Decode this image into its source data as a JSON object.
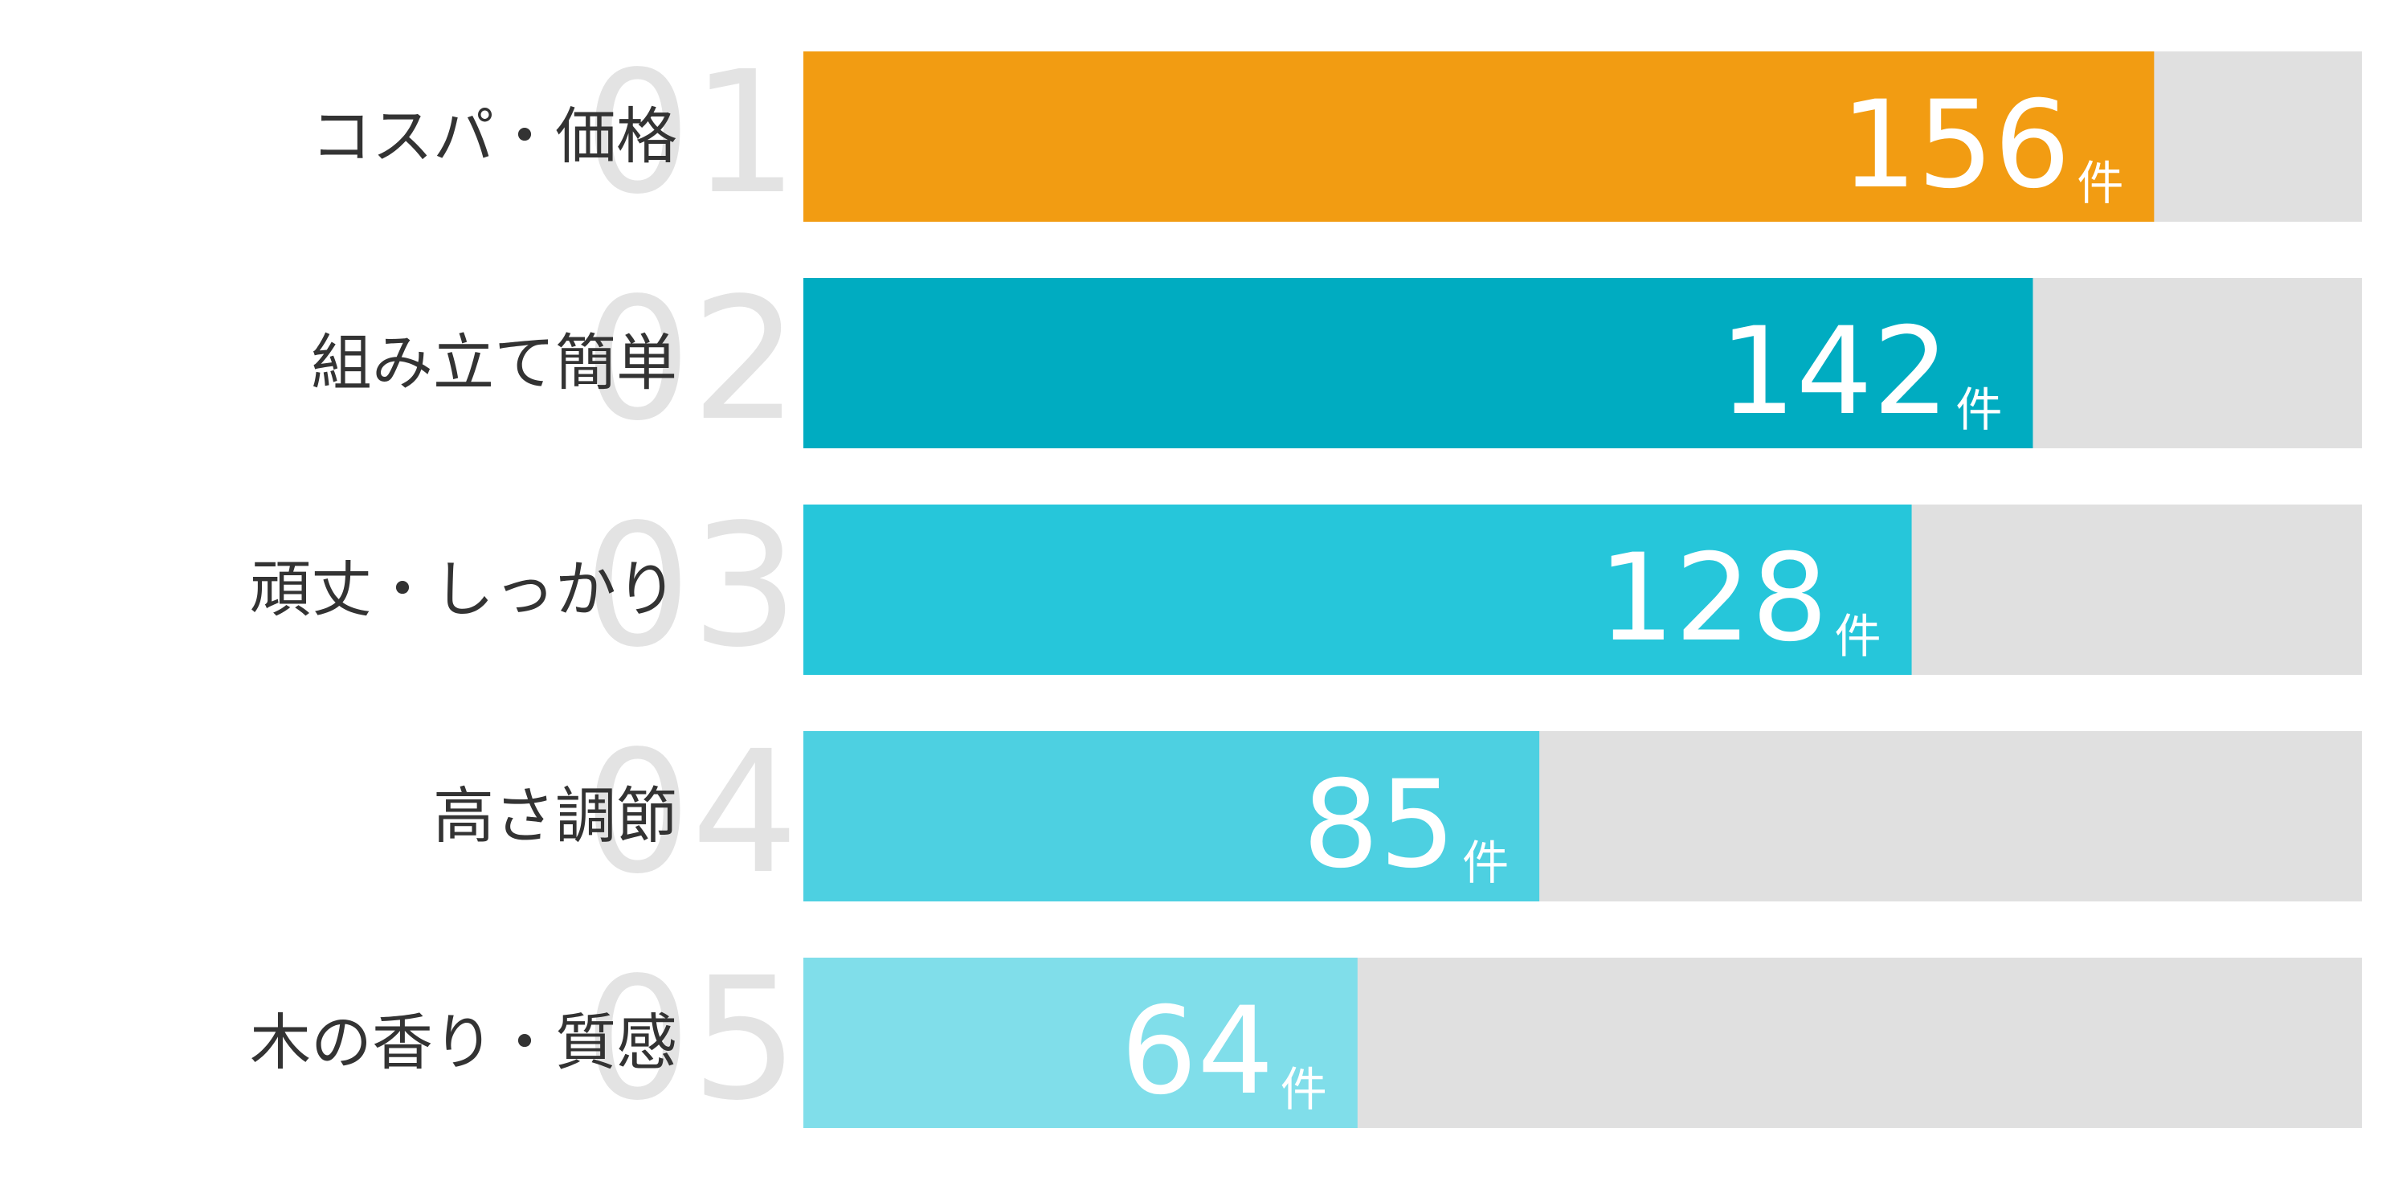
{
  "chart_data": {
    "type": "bar",
    "categories": [
      "コスパ・価格",
      "組み立て簡単",
      "頑丈・しっかり",
      "高さ調節",
      "木の香り・質感"
    ],
    "ranks": [
      "01",
      "02",
      "03",
      "04",
      "05"
    ],
    "values": [
      156,
      142,
      128,
      85,
      64
    ],
    "unit": "件",
    "colors": [
      "#f29c12",
      "#00acc1",
      "#26c6da",
      "#4dd0e1",
      "#80deea"
    ],
    "track_color": "#e0e0e0",
    "xlim": [
      0,
      180
    ]
  }
}
